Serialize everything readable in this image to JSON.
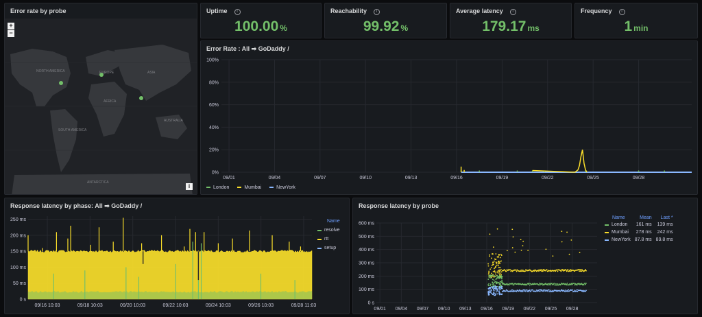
{
  "map_panel": {
    "title": "Error rate by probe",
    "zoom_in": "+",
    "zoom_out": "−",
    "info": "i",
    "labels": [
      "NORTH AMERICA",
      "EUROPE",
      "ASIA",
      "AFRICA",
      "SOUTH AMERICA",
      "AUSTRALIA",
      "ANTARCTICA"
    ]
  },
  "stats": [
    {
      "title": "Uptime",
      "value": "100.00",
      "unit": "%"
    },
    {
      "title": "Reachability",
      "value": "99.92",
      "unit": "%"
    },
    {
      "title": "Average latency",
      "value": "179.17",
      "unit": "ms"
    },
    {
      "title": "Frequency",
      "value": "1",
      "unit": "min"
    }
  ],
  "colors": {
    "green": "#73bf69",
    "yellow": "#fade2a",
    "blue": "#8ab8ff",
    "header": "#6e9fff",
    "bg": "#181b1f"
  },
  "error_rate": {
    "title": "Error Rate : All ➡ GoDaddy /",
    "legend": [
      "London",
      "Mumbai",
      "NewYork"
    ]
  },
  "phase": {
    "title": "Response latency by phase: All ➡ GoDaddy /",
    "legend_header": "Name",
    "legend": [
      "resolve",
      "rtt",
      "setup"
    ]
  },
  "probe": {
    "title": "Response latency by probe",
    "headers": {
      "name": "Name",
      "mean": "Mean",
      "last": "Last *"
    },
    "rows": [
      {
        "name": "London",
        "mean": "161 ms",
        "last": "139 ms"
      },
      {
        "name": "Mumbai",
        "mean": "278 ms",
        "last": "242 ms"
      },
      {
        "name": "NewYork",
        "mean": "87.8 ms",
        "last": "89.8 ms"
      }
    ]
  },
  "chart_data": [
    {
      "type": "line",
      "title": "Error Rate : All ➡ GoDaddy /",
      "x_ticks": [
        "09/01",
        "09/04",
        "09/07",
        "09/10",
        "09/13",
        "09/16",
        "09/19",
        "09/22",
        "09/25",
        "09/28"
      ],
      "y_ticks": [
        "0%",
        "20%",
        "40%",
        "60%",
        "80%",
        "100%"
      ],
      "ylim": [
        0,
        100
      ],
      "xlim": [
        0,
        31
      ],
      "series": [
        {
          "name": "NewYork",
          "x": [
            15.8,
            31
          ],
          "y": [
            0,
            0
          ]
        },
        {
          "name": "London",
          "x": [
            15.8,
            17,
            19.5,
            20.5,
            21.3,
            24,
            27.5,
            29.2
          ],
          "y": [
            2,
            1.5,
            1.5,
            1.5,
            1.5,
            1.5,
            1.5,
            1.5
          ]
        },
        {
          "name": "Mumbai",
          "x": [
            15.8,
            16,
            20.5,
            23.3,
            23.5,
            23.6,
            23.7,
            23.8,
            23.9,
            24.0,
            24.1
          ],
          "y": [
            5,
            2,
            1.5,
            0,
            2,
            6,
            14,
            20,
            8,
            2,
            0
          ]
        }
      ]
    },
    {
      "type": "area",
      "title": "Response latency by phase: All ➡ GoDaddy /",
      "x_ticks": [
        "09/16 10:03",
        "09/18 10:03",
        "09/20 10:03",
        "09/22 10:03",
        "09/24 10:03",
        "09/26 10:03",
        "09/28 11:03"
      ],
      "y_ticks": [
        "0 s",
        "50 ms",
        "100 ms",
        "150 ms",
        "200 ms",
        "250 ms"
      ],
      "ylim": [
        0,
        260
      ],
      "series": [
        {
          "name": "rtt",
          "typical": 150,
          "spikes": [
            {
              "x": 0.0,
              "y": 200
            },
            {
              "x": 0.05,
              "y": 160
            },
            {
              "x": 0.1,
              "y": 210
            },
            {
              "x": 0.14,
              "y": 190
            },
            {
              "x": 0.15,
              "y": 230
            },
            {
              "x": 0.22,
              "y": 170
            },
            {
              "x": 0.25,
              "y": 225
            },
            {
              "x": 0.3,
              "y": 180
            },
            {
              "x": 0.335,
              "y": 255
            },
            {
              "x": 0.4,
              "y": 175
            },
            {
              "x": 0.47,
              "y": 200
            },
            {
              "x": 0.55,
              "y": 165
            },
            {
              "x": 0.57,
              "y": 220
            },
            {
              "x": 0.59,
              "y": 210
            },
            {
              "x": 0.62,
              "y": 210
            },
            {
              "x": 0.67,
              "y": 175
            },
            {
              "x": 0.72,
              "y": 190
            },
            {
              "x": 0.78,
              "y": 215
            },
            {
              "x": 0.86,
              "y": 200
            },
            {
              "x": 0.92,
              "y": 180
            },
            {
              "x": 0.96,
              "y": 165
            }
          ]
        },
        {
          "name": "setup",
          "typical": 20,
          "spikes": [
            {
              "x": 0.09,
              "y": 80
            },
            {
              "x": 0.2,
              "y": 90
            },
            {
              "x": 0.345,
              "y": 100
            },
            {
              "x": 0.39,
              "y": 70
            },
            {
              "x": 0.52,
              "y": 110
            },
            {
              "x": 0.58,
              "y": 180
            },
            {
              "x": 0.6,
              "y": 100
            },
            {
              "x": 0.61,
              "y": 175
            },
            {
              "x": 0.82,
              "y": 80
            },
            {
              "x": 0.94,
              "y": 60
            }
          ]
        },
        {
          "name": "resolve",
          "typical": 1,
          "spikes": []
        }
      ]
    },
    {
      "type": "scatter",
      "title": "Response latency by probe",
      "x_ticks": [
        "09/01",
        "09/04",
        "09/07",
        "09/10",
        "09/13",
        "09/16",
        "09/19",
        "09/22",
        "09/25",
        "09/28"
      ],
      "y_ticks": [
        "0 s",
        "100 ms",
        "200 ms",
        "300 ms",
        "400 ms",
        "500 ms",
        "600 ms"
      ],
      "ylim": [
        0,
        600
      ],
      "xlim": [
        0,
        31
      ],
      "series": [
        {
          "name": "Mumbai",
          "mean": 278,
          "last": 242
        },
        {
          "name": "London",
          "mean": 161,
          "last": 139
        },
        {
          "name": "NewYork",
          "mean": 87.8,
          "last": 89.8
        }
      ]
    }
  ]
}
